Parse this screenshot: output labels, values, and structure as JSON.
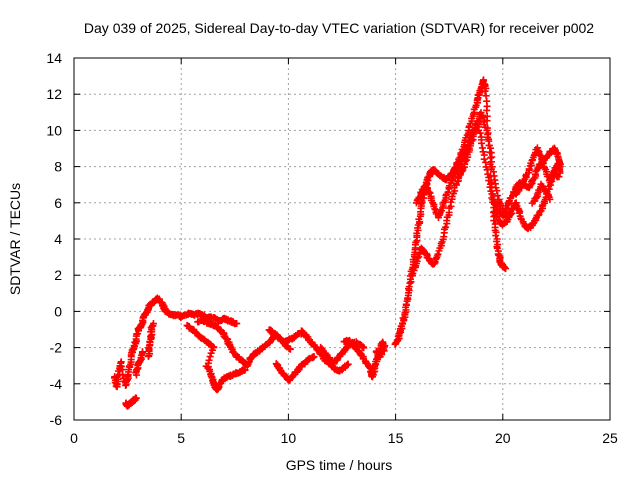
{
  "chart_data": {
    "type": "scatter",
    "title": "Day 039 of 2025, Sidereal Day-to-day VTEC variation (SDTVAR) for receiver p002",
    "xlabel": "GPS time / hours",
    "ylabel": "SDTVAR / TECUs",
    "xlim": [
      0,
      25
    ],
    "ylim": [
      -6,
      14
    ],
    "xticks": [
      0,
      5,
      10,
      15,
      20,
      25
    ],
    "yticks": [
      -6,
      -4,
      -2,
      0,
      2,
      4,
      6,
      8,
      10,
      12,
      14
    ],
    "grid": true,
    "marker": "plus",
    "color": "#ff0000",
    "series": [
      {
        "values": [
          [
            1.9,
            -3.6
          ],
          [
            2.0,
            -4.2
          ],
          [
            2.1,
            -3.3
          ],
          [
            2.2,
            -2.8
          ],
          [
            2.4,
            -4.1
          ],
          [
            2.5,
            -3.7
          ],
          [
            2.6,
            -3.0
          ],
          [
            2.7,
            -2.3
          ],
          [
            2.8,
            -2.0
          ],
          [
            2.9,
            -1.6
          ],
          [
            3.0,
            -1.0
          ],
          [
            3.1,
            -0.9
          ],
          [
            3.2,
            -0.6
          ],
          [
            3.3,
            -0.2
          ],
          [
            3.4,
            0.0
          ],
          [
            3.5,
            0.3
          ],
          [
            3.6,
            0.4
          ],
          [
            3.7,
            0.5
          ],
          [
            3.8,
            0.6
          ],
          [
            3.9,
            0.7
          ],
          [
            4.0,
            0.6
          ],
          [
            2.4,
            -5.1
          ],
          [
            2.5,
            -5.2
          ],
          [
            2.6,
            -5.1
          ],
          [
            2.7,
            -5.0
          ],
          [
            2.8,
            -4.9
          ],
          [
            2.9,
            -4.8
          ],
          [
            3.5,
            -2.5
          ],
          [
            3.5,
            -2.0
          ],
          [
            3.6,
            -1.5
          ],
          [
            3.6,
            -1.0
          ],
          [
            3.7,
            -0.7
          ],
          [
            2.9,
            -3.5
          ],
          [
            3.0,
            -3.0
          ],
          [
            3.1,
            -2.7
          ],
          [
            3.2,
            -2.2
          ],
          [
            4.1,
            0.5
          ],
          [
            4.2,
            0.2
          ],
          [
            4.3,
            0.0
          ],
          [
            4.4,
            -0.1
          ],
          [
            4.6,
            -0.2
          ],
          [
            4.8,
            -0.2
          ],
          [
            5.0,
            -0.3
          ],
          [
            5.2,
            -0.2
          ],
          [
            5.4,
            -0.1
          ],
          [
            5.6,
            -0.2
          ],
          [
            5.8,
            -0.1
          ],
          [
            6.0,
            -0.2
          ],
          [
            6.2,
            -0.4
          ],
          [
            6.4,
            -0.3
          ],
          [
            6.6,
            -0.4
          ],
          [
            6.8,
            -0.5
          ],
          [
            7.0,
            -0.4
          ],
          [
            7.2,
            -0.5
          ],
          [
            7.4,
            -0.6
          ],
          [
            7.6,
            -0.7
          ],
          [
            5.3,
            -0.8
          ],
          [
            5.5,
            -1.0
          ],
          [
            5.7,
            -1.2
          ],
          [
            5.9,
            -1.4
          ],
          [
            6.1,
            -1.6
          ],
          [
            6.3,
            -1.8
          ],
          [
            6.5,
            -2.0
          ],
          [
            6.2,
            -3.0
          ],
          [
            6.4,
            -3.5
          ],
          [
            6.5,
            -3.9
          ],
          [
            6.6,
            -4.2
          ],
          [
            6.7,
            -4.3
          ],
          [
            6.8,
            -4.0
          ],
          [
            7.0,
            -3.7
          ],
          [
            7.2,
            -3.6
          ],
          [
            7.4,
            -3.5
          ],
          [
            7.6,
            -3.4
          ],
          [
            7.8,
            -3.3
          ],
          [
            8.0,
            -3.2
          ],
          [
            5.8,
            -0.6
          ],
          [
            6.0,
            -0.5
          ],
          [
            6.2,
            -0.6
          ],
          [
            6.4,
            -0.7
          ],
          [
            6.6,
            -0.8
          ],
          [
            6.8,
            -1.0
          ],
          [
            7.0,
            -1.3
          ],
          [
            7.2,
            -1.7
          ],
          [
            7.3,
            -2.0
          ],
          [
            7.5,
            -2.4
          ],
          [
            7.7,
            -2.6
          ],
          [
            7.9,
            -2.8
          ],
          [
            8.1,
            -3.0
          ],
          [
            8.2,
            -2.6
          ],
          [
            8.4,
            -2.4
          ],
          [
            8.6,
            -2.2
          ],
          [
            8.8,
            -2.0
          ],
          [
            9.0,
            -1.8
          ],
          [
            9.2,
            -1.6
          ],
          [
            9.4,
            -1.3
          ],
          [
            9.6,
            -1.5
          ],
          [
            9.8,
            -1.7
          ],
          [
            10.0,
            -1.6
          ],
          [
            10.2,
            -1.5
          ],
          [
            10.4,
            -1.3
          ],
          [
            10.6,
            -1.2
          ],
          [
            9.1,
            -1.0
          ],
          [
            9.3,
            -1.2
          ],
          [
            9.5,
            -1.4
          ],
          [
            9.7,
            -1.6
          ],
          [
            9.9,
            -1.9
          ],
          [
            10.1,
            -2.1
          ],
          [
            9.4,
            -2.9
          ],
          [
            9.6,
            -3.2
          ],
          [
            9.8,
            -3.5
          ],
          [
            10.0,
            -3.8
          ],
          [
            10.2,
            -3.6
          ],
          [
            10.4,
            -3.3
          ],
          [
            10.6,
            -3.0
          ],
          [
            10.8,
            -2.8
          ],
          [
            11.0,
            -2.6
          ],
          [
            11.2,
            -2.5
          ],
          [
            10.6,
            -1.1
          ],
          [
            10.8,
            -1.3
          ],
          [
            11.0,
            -1.6
          ],
          [
            11.2,
            -1.9
          ],
          [
            11.4,
            -2.2
          ],
          [
            11.6,
            -2.5
          ],
          [
            11.8,
            -2.8
          ],
          [
            12.0,
            -3.0
          ],
          [
            12.2,
            -3.2
          ],
          [
            12.4,
            -3.3
          ],
          [
            12.6,
            -3.1
          ],
          [
            12.8,
            -2.9
          ],
          [
            11.5,
            -2.0
          ],
          [
            11.7,
            -2.3
          ],
          [
            11.9,
            -2.6
          ],
          [
            12.1,
            -2.9
          ],
          [
            12.3,
            -2.6
          ],
          [
            12.5,
            -2.3
          ],
          [
            12.7,
            -2.0
          ],
          [
            12.9,
            -1.8
          ],
          [
            13.1,
            -1.7
          ],
          [
            13.3,
            -1.8
          ],
          [
            13.5,
            -2.0
          ],
          [
            12.6,
            -1.7
          ],
          [
            12.8,
            -1.6
          ],
          [
            13.0,
            -1.8
          ],
          [
            13.2,
            -2.1
          ],
          [
            13.4,
            -2.4
          ],
          [
            13.6,
            -2.8
          ],
          [
            13.8,
            -3.1
          ],
          [
            13.9,
            -3.6
          ],
          [
            14.0,
            -3.3
          ],
          [
            14.1,
            -2.8
          ],
          [
            14.2,
            -2.4
          ],
          [
            14.3,
            -2.0
          ],
          [
            14.4,
            -1.7
          ],
          [
            14.5,
            -2.0
          ],
          [
            14.3,
            -2.5
          ],
          [
            14.1,
            -2.2
          ],
          [
            15.0,
            -1.8
          ],
          [
            15.1,
            -1.6
          ],
          [
            15.2,
            -1.2
          ],
          [
            15.3,
            -0.8
          ],
          [
            15.4,
            -0.3
          ],
          [
            15.5,
            0.3
          ],
          [
            15.6,
            1.0
          ],
          [
            15.7,
            1.8
          ],
          [
            15.8,
            2.6
          ],
          [
            15.9,
            3.4
          ],
          [
            16.0,
            4.2
          ],
          [
            16.1,
            5.0
          ],
          [
            16.2,
            5.8
          ],
          [
            16.3,
            6.4
          ],
          [
            16.4,
            6.9
          ],
          [
            16.5,
            7.3
          ],
          [
            16.6,
            7.6
          ],
          [
            16.7,
            7.8
          ],
          [
            16.8,
            7.8
          ],
          [
            17.0,
            7.6
          ],
          [
            17.2,
            7.4
          ],
          [
            17.4,
            7.3
          ],
          [
            17.6,
            7.6
          ],
          [
            17.8,
            8.0
          ],
          [
            18.0,
            8.5
          ],
          [
            18.2,
            9.2
          ],
          [
            18.4,
            10.0
          ],
          [
            18.6,
            10.8
          ],
          [
            18.8,
            11.5
          ],
          [
            18.9,
            12.0
          ],
          [
            19.0,
            12.4
          ],
          [
            19.1,
            12.8
          ],
          [
            19.2,
            12.2
          ],
          [
            19.3,
            10.5
          ],
          [
            19.4,
            8.5
          ],
          [
            19.5,
            6.5
          ],
          [
            19.6,
            5.0
          ],
          [
            19.7,
            4.0
          ],
          [
            19.8,
            3.2
          ],
          [
            19.9,
            2.7
          ],
          [
            20.0,
            2.5
          ],
          [
            20.1,
            2.4
          ],
          [
            15.8,
            2.0
          ],
          [
            16.0,
            2.8
          ],
          [
            16.2,
            3.5
          ],
          [
            16.4,
            3.2
          ],
          [
            16.6,
            2.8
          ],
          [
            16.8,
            2.6
          ],
          [
            17.0,
            3.2
          ],
          [
            17.2,
            4.0
          ],
          [
            17.4,
            5.0
          ],
          [
            17.6,
            6.0
          ],
          [
            17.8,
            7.0
          ],
          [
            18.0,
            7.5
          ],
          [
            18.2,
            8.0
          ],
          [
            18.4,
            8.8
          ],
          [
            18.6,
            9.5
          ],
          [
            18.8,
            10.3
          ],
          [
            19.0,
            11.0
          ],
          [
            19.2,
            10.2
          ],
          [
            19.4,
            9.0
          ],
          [
            19.6,
            7.5
          ],
          [
            19.8,
            6.2
          ],
          [
            20.0,
            5.6
          ],
          [
            20.2,
            5.2
          ],
          [
            20.4,
            5.4
          ],
          [
            16.0,
            6.0
          ],
          [
            16.2,
            6.6
          ],
          [
            16.4,
            7.0
          ],
          [
            16.6,
            6.5
          ],
          [
            16.8,
            5.8
          ],
          [
            17.0,
            5.2
          ],
          [
            17.2,
            5.8
          ],
          [
            17.4,
            6.5
          ],
          [
            17.6,
            7.2
          ],
          [
            17.8,
            7.8
          ],
          [
            18.0,
            8.2
          ],
          [
            18.2,
            8.6
          ],
          [
            18.4,
            9.2
          ],
          [
            18.6,
            9.8
          ],
          [
            18.8,
            10.5
          ],
          [
            19.0,
            9.5
          ],
          [
            19.2,
            8.2
          ],
          [
            19.4,
            7.0
          ],
          [
            19.6,
            6.0
          ],
          [
            19.8,
            5.5
          ],
          [
            20.0,
            5.3
          ],
          [
            20.2,
            5.8
          ],
          [
            20.4,
            6.3
          ],
          [
            20.6,
            6.8
          ],
          [
            20.8,
            7.1
          ],
          [
            21.0,
            7.0
          ],
          [
            21.2,
            6.8
          ],
          [
            21.4,
            7.2
          ],
          [
            21.6,
            7.8
          ],
          [
            21.8,
            8.2
          ],
          [
            22.0,
            8.5
          ],
          [
            22.2,
            8.8
          ],
          [
            22.4,
            9.0
          ],
          [
            22.6,
            8.6
          ],
          [
            22.7,
            8.0
          ],
          [
            19.6,
            5.5
          ],
          [
            19.8,
            5.0
          ],
          [
            20.0,
            4.8
          ],
          [
            20.2,
            5.0
          ],
          [
            20.4,
            5.6
          ],
          [
            20.6,
            6.0
          ],
          [
            20.8,
            5.4
          ],
          [
            21.0,
            4.7
          ],
          [
            21.2,
            4.6
          ],
          [
            21.4,
            4.8
          ],
          [
            21.6,
            5.2
          ],
          [
            21.8,
            5.6
          ],
          [
            22.0,
            6.2
          ],
          [
            22.2,
            7.0
          ],
          [
            22.4,
            7.6
          ],
          [
            22.6,
            7.4
          ],
          [
            20.6,
            6.5
          ],
          [
            20.8,
            6.8
          ],
          [
            21.0,
            7.2
          ],
          [
            21.2,
            7.8
          ],
          [
            21.4,
            8.4
          ],
          [
            21.6,
            9.0
          ],
          [
            21.8,
            8.5
          ],
          [
            22.0,
            7.8
          ],
          [
            22.2,
            7.2
          ],
          [
            22.4,
            7.8
          ],
          [
            22.6,
            8.2
          ],
          [
            22.7,
            7.6
          ],
          [
            21.4,
            6.0
          ],
          [
            21.6,
            6.4
          ],
          [
            21.8,
            7.0
          ],
          [
            22.0,
            6.6
          ],
          [
            22.2,
            6.2
          ]
        ]
      }
    ]
  }
}
